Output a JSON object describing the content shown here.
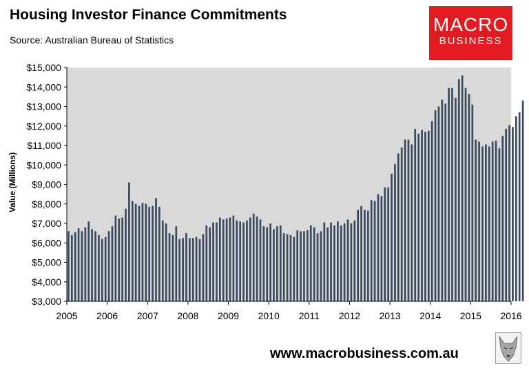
{
  "header": {
    "title": "Housing Investor Finance Commitments",
    "subtitle": "Source: Australian Bureau of Statistics"
  },
  "logo": {
    "line1": "MACRO",
    "line2": "BUSINESS",
    "color": "#e21b23"
  },
  "footer": {
    "url": "www.macrobusiness.com.au"
  },
  "chart_data": {
    "type": "bar",
    "title": "Housing Investor Finance Commitments",
    "subtitle": "Source: Australian Bureau of Statistics",
    "xlabel": "",
    "ylabel": "Value (Millions)",
    "ylim": [
      3000,
      15000
    ],
    "y_ticks": [
      "$3,000",
      "$4,000",
      "$5,000",
      "$6,000",
      "$7,000",
      "$8,000",
      "$9,000",
      "$10,000",
      "$11,000",
      "$12,000",
      "$13,000",
      "$14,000",
      "$15,000"
    ],
    "x_ticks": [
      "2005",
      "2006",
      "2007",
      "2008",
      "2009",
      "2010",
      "2011",
      "2012",
      "2013",
      "2014",
      "2015",
      "2016"
    ],
    "x_start": "2005-01",
    "frequency": "monthly",
    "grid": false,
    "plot_background": "#d9d9d9",
    "bar_color": "#3b4a5e",
    "values": [
      6600,
      6400,
      6550,
      6750,
      6600,
      6800,
      7100,
      6700,
      6600,
      6400,
      6200,
      6300,
      6600,
      6850,
      7400,
      7250,
      7300,
      7750,
      9100,
      8150,
      8000,
      7900,
      8050,
      8000,
      7850,
      7900,
      8300,
      7850,
      7150,
      7000,
      6500,
      6400,
      6850,
      6200,
      6250,
      6500,
      6250,
      6250,
      6300,
      6200,
      6450,
      6900,
      6800,
      7050,
      7050,
      7300,
      7200,
      7250,
      7300,
      7400,
      7150,
      7100,
      7050,
      7150,
      7300,
      7500,
      7350,
      7200,
      6850,
      6800,
      7000,
      6700,
      6850,
      6900,
      6500,
      6450,
      6400,
      6300,
      6650,
      6600,
      6600,
      6650,
      6900,
      6800,
      6500,
      6600,
      7050,
      6800,
      7050,
      6900,
      7100,
      6900,
      7000,
      7200,
      7000,
      7150,
      7700,
      7900,
      7700,
      7650,
      8200,
      8150,
      8500,
      8400,
      8850,
      8850,
      9550,
      10050,
      10600,
      10900,
      11300,
      11300,
      11050,
      11850,
      11600,
      11800,
      11700,
      11750,
      12250,
      12800,
      13000,
      13350,
      13150,
      13950,
      13950,
      13450,
      14400,
      14600,
      13950,
      13650,
      13100,
      11300,
      11200,
      10950,
      11050,
      10950,
      11200,
      11250,
      10850,
      11500,
      11850,
      12050,
      11950,
      12500,
      12700,
      13300
    ]
  }
}
